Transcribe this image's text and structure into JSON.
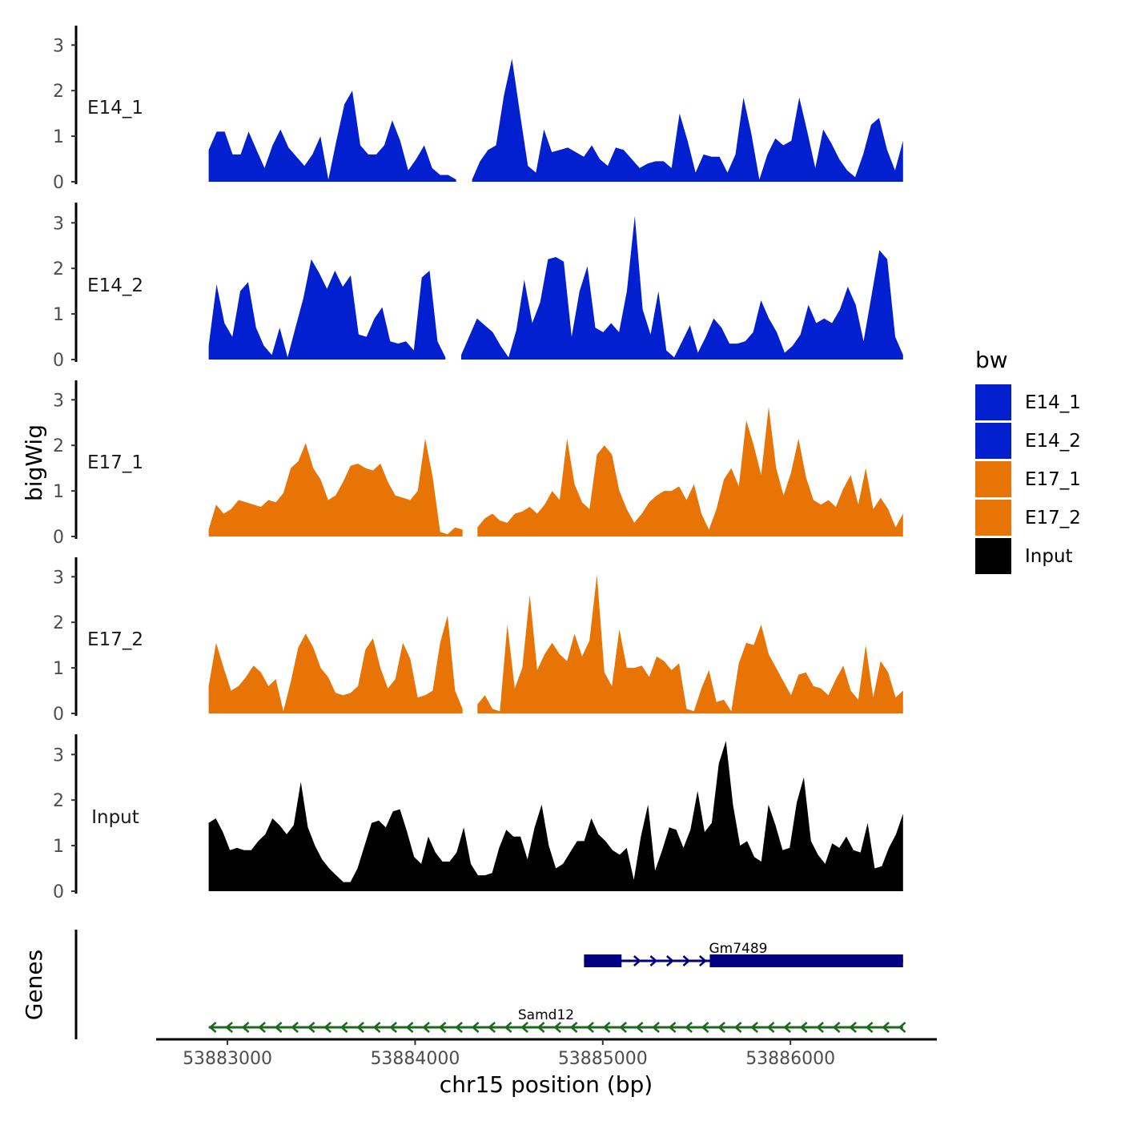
{
  "chart_data": {
    "type": "area",
    "ylabel": "bigWig",
    "xlabel": "chr15 position (bp)",
    "x_range": [
      53882900,
      53886600
    ],
    "x_axis_limits": [
      53882620,
      53886780
    ],
    "x_ticks": [
      53883000,
      53884000,
      53885000,
      53886000
    ],
    "x_tick_labels": [
      "53883000",
      "53884000",
      "53885000",
      "53886000"
    ],
    "ylim": [
      0,
      3.4
    ],
    "y_ticks": [
      0,
      1,
      2,
      3
    ],
    "y_tick_labels": [
      "0",
      "1",
      "2",
      "3"
    ],
    "legend": {
      "title": "bw",
      "position": "right",
      "entries": [
        {
          "label": "E14_1",
          "color": "#0320D0"
        },
        {
          "label": "E14_2",
          "color": "#0320D0"
        },
        {
          "label": "E17_1",
          "color": "#E87406"
        },
        {
          "label": "E17_2",
          "color": "#E87406"
        },
        {
          "label": "Input",
          "color": "#000000"
        }
      ]
    },
    "series": [
      {
        "name": "E14_1",
        "label": "E14_1",
        "color": "#0320D0",
        "values": [
          0.7,
          1.1,
          1.1,
          0.6,
          0.6,
          1.1,
          0.7,
          0.3,
          0.8,
          1.15,
          0.75,
          0.55,
          0.35,
          0.6,
          1.0,
          0.05,
          0.9,
          1.7,
          2.0,
          0.8,
          0.6,
          0.6,
          0.8,
          1.35,
          0.9,
          0.25,
          0.5,
          0.8,
          0.3,
          0.15,
          0.15,
          0.05,
          null,
          0.05,
          0.45,
          0.7,
          0.8,
          1.9,
          2.7,
          1.5,
          0.35,
          0.2,
          1.15,
          0.65,
          0.7,
          0.75,
          0.65,
          0.55,
          0.8,
          0.5,
          0.35,
          0.75,
          0.7,
          0.5,
          0.3,
          0.4,
          0.45,
          0.45,
          0.3,
          1.5,
          0.9,
          0.2,
          0.6,
          0.55,
          0.55,
          0.2,
          0.6,
          1.85,
          1.05,
          0.05,
          0.6,
          0.95,
          0.8,
          0.9,
          1.85,
          1.1,
          0.3,
          1.15,
          0.85,
          0.5,
          0.25,
          0.1,
          0.6,
          1.25,
          1.4,
          0.7,
          0.25,
          0.9
        ]
      },
      {
        "name": "E14_2",
        "label": "E14_2",
        "color": "#0320D0",
        "values": [
          0.3,
          1.65,
          0.8,
          0.5,
          1.5,
          1.7,
          0.7,
          0.3,
          0.1,
          0.7,
          0.05,
          0.7,
          1.35,
          2.2,
          1.9,
          1.55,
          1.95,
          1.6,
          1.85,
          0.55,
          0.5,
          0.9,
          1.15,
          0.4,
          0.35,
          0.4,
          0.2,
          1.8,
          1.95,
          0.4,
          0.05,
          null,
          0.1,
          0.5,
          0.9,
          0.75,
          0.6,
          0.3,
          0.05,
          0.65,
          1.75,
          0.8,
          1.25,
          2.2,
          2.25,
          2.15,
          0.5,
          1.5,
          2.05,
          0.7,
          0.6,
          0.8,
          0.6,
          1.5,
          3.15,
          1.1,
          0.55,
          1.5,
          0.2,
          0.05,
          0.4,
          0.75,
          0.15,
          0.5,
          0.9,
          0.7,
          0.35,
          0.35,
          0.4,
          0.6,
          1.3,
          0.9,
          0.6,
          0.15,
          0.3,
          0.55,
          1.2,
          0.8,
          0.9,
          0.8,
          1.1,
          1.6,
          1.2,
          0.4,
          1.4,
          2.4,
          2.2,
          0.5,
          0.1
        ]
      },
      {
        "name": "E17_1",
        "label": "E17_1",
        "color": "#E87406",
        "values": [
          0.15,
          0.7,
          0.5,
          0.6,
          0.8,
          0.75,
          0.7,
          0.65,
          0.8,
          0.75,
          0.95,
          1.5,
          1.65,
          2.05,
          1.5,
          1.25,
          0.8,
          0.9,
          1.2,
          1.55,
          1.6,
          1.5,
          1.45,
          1.6,
          1.2,
          0.9,
          0.85,
          0.8,
          1.0,
          2.15,
          1.3,
          0.1,
          0.05,
          0.2,
          0.15,
          null,
          0.2,
          0.4,
          0.5,
          0.35,
          0.3,
          0.5,
          0.55,
          0.65,
          0.5,
          0.7,
          1.0,
          0.8,
          2.15,
          1.15,
          0.75,
          0.6,
          1.8,
          2.0,
          1.8,
          1.0,
          0.6,
          0.3,
          0.5,
          0.75,
          0.9,
          1.0,
          1.0,
          1.1,
          0.8,
          1.15,
          0.5,
          0.15,
          0.6,
          1.25,
          1.5,
          1.1,
          2.55,
          2.0,
          1.35,
          2.85,
          1.5,
          0.9,
          1.4,
          2.15,
          1.3,
          0.8,
          0.7,
          0.8,
          0.65,
          1.05,
          1.35,
          0.7,
          1.5,
          0.6,
          0.85,
          0.6,
          0.2,
          0.5
        ]
      },
      {
        "name": "E17_2",
        "label": "E17_2",
        "color": "#E87406",
        "values": [
          0.6,
          1.55,
          1.0,
          0.5,
          0.6,
          0.8,
          1.05,
          0.9,
          0.6,
          0.75,
          0.05,
          0.7,
          1.45,
          1.75,
          1.45,
          1.0,
          0.8,
          0.45,
          0.4,
          0.45,
          0.6,
          1.4,
          1.65,
          1.0,
          0.55,
          0.75,
          1.55,
          1.2,
          0.35,
          0.4,
          0.5,
          1.55,
          2.15,
          0.5,
          0.1,
          null,
          0.2,
          0.4,
          0.1,
          0.05,
          1.95,
          0.55,
          1.0,
          2.6,
          0.95,
          1.3,
          1.55,
          1.3,
          1.15,
          1.75,
          1.25,
          1.6,
          3.05,
          0.9,
          0.6,
          1.85,
          1.0,
          1.0,
          1.05,
          0.8,
          1.25,
          1.15,
          0.95,
          1.1,
          0.1,
          0.05,
          0.55,
          0.95,
          0.25,
          0.3,
          0.05,
          1.1,
          1.55,
          1.5,
          1.95,
          1.3,
          1.0,
          0.7,
          0.4,
          0.85,
          0.9,
          0.6,
          0.55,
          0.4,
          0.75,
          1.05,
          0.5,
          0.3,
          1.5,
          0.35,
          1.15,
          0.9,
          0.35,
          0.5
        ]
      },
      {
        "name": "Input",
        "label": "Input",
        "color": "#000000",
        "values": [
          1.5,
          1.6,
          1.3,
          0.9,
          0.95,
          0.9,
          0.9,
          1.1,
          1.25,
          1.6,
          1.45,
          1.25,
          1.45,
          2.4,
          1.4,
          1.0,
          0.7,
          0.5,
          0.35,
          0.2,
          0.2,
          0.5,
          1.0,
          1.5,
          1.55,
          1.4,
          1.75,
          1.8,
          1.3,
          0.75,
          0.6,
          1.2,
          0.85,
          0.65,
          0.65,
          0.85,
          1.4,
          0.6,
          0.35,
          0.35,
          0.4,
          0.95,
          1.35,
          1.2,
          1.2,
          0.7,
          1.4,
          1.9,
          1.0,
          0.5,
          0.6,
          0.85,
          1.1,
          1.1,
          1.6,
          1.25,
          1.1,
          0.9,
          0.8,
          0.95,
          0.25,
          1.2,
          1.9,
          0.45,
          0.9,
          1.4,
          1.35,
          0.95,
          1.35,
          2.2,
          1.3,
          1.5,
          2.8,
          3.3,
          1.9,
          1.0,
          1.1,
          0.75,
          0.65,
          1.9,
          1.45,
          0.9,
          0.95,
          1.95,
          2.5,
          1.1,
          0.8,
          0.6,
          1.05,
          0.95,
          1.2,
          0.9,
          0.85,
          1.5,
          0.5,
          0.55,
          0.95,
          1.25,
          1.7
        ]
      }
    ],
    "genes": {
      "track_label": "Genes",
      "items": [
        {
          "name": "Gm7489",
          "strand": "+",
          "start": 53884900,
          "end": 53886600,
          "color": "#000080",
          "exons": [
            [
              53884900,
              53885100
            ],
            [
              53885570,
              53886600
            ]
          ]
        },
        {
          "name": "Samd12",
          "strand": "-",
          "start": 53882900,
          "end": 53886600,
          "color": "#1A6A1A",
          "exons": []
        }
      ]
    }
  }
}
